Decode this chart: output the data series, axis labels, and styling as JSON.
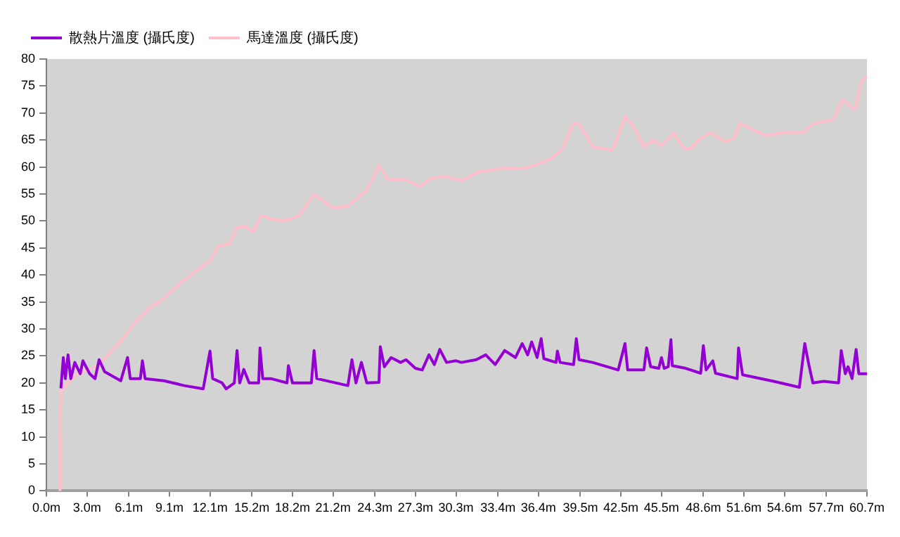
{
  "chart_data": {
    "type": "line",
    "legend": "top left",
    "grid": false,
    "marker": "none",
    "line_style": "solid",
    "xlim": [
      0,
      60.7
    ],
    "ylim": [
      0,
      80
    ],
    "xticks": [
      {
        "value": 0,
        "label": "0.0m"
      },
      {
        "value": 3.0,
        "label": "3.0m"
      },
      {
        "value": 6.1,
        "label": "6.1m"
      },
      {
        "value": 9.1,
        "label": "9.1m"
      },
      {
        "value": 12.1,
        "label": "12.1m"
      },
      {
        "value": 15.2,
        "label": "15.2m"
      },
      {
        "value": 18.2,
        "label": "18.2m"
      },
      {
        "value": 21.2,
        "label": "21.2m"
      },
      {
        "value": 24.3,
        "label": "24.3m"
      },
      {
        "value": 27.3,
        "label": "27.3m"
      },
      {
        "value": 30.3,
        "label": "30.3m"
      },
      {
        "value": 33.4,
        "label": "33.4m"
      },
      {
        "value": 36.4,
        "label": "36.4m"
      },
      {
        "value": 39.5,
        "label": "39.5m"
      },
      {
        "value": 42.5,
        "label": "42.5m"
      },
      {
        "value": 45.5,
        "label": "45.5m"
      },
      {
        "value": 48.6,
        "label": "48.6m"
      },
      {
        "value": 51.6,
        "label": "51.6m"
      },
      {
        "value": 54.6,
        "label": "54.6m"
      },
      {
        "value": 57.7,
        "label": "57.7m"
      },
      {
        "value": 60.7,
        "label": "60.7m"
      }
    ],
    "yticks": [
      0,
      5,
      10,
      15,
      20,
      25,
      30,
      35,
      40,
      45,
      50,
      55,
      60,
      65,
      70,
      75,
      80
    ],
    "series": [
      {
        "name": "散熱片溫度 (攝氏度)",
        "color": "#9400d3",
        "x": [
          1.07,
          1.25,
          1.4,
          1.6,
          1.8,
          2.1,
          2.5,
          2.7,
          3.2,
          3.6,
          3.9,
          4.3,
          5.5,
          6.0,
          6.2,
          6.95,
          7.1,
          7.3,
          8.7,
          10.2,
          11.6,
          12.1,
          12.3,
          13.0,
          13.3,
          13.9,
          14.1,
          14.3,
          14.6,
          15.0,
          15.7,
          15.8,
          16.0,
          16.6,
          17.8,
          17.9,
          18.2,
          19.6,
          19.8,
          20.0,
          22.3,
          22.6,
          22.9,
          23.3,
          23.7,
          24.6,
          24.7,
          25,
          25.5,
          26.2,
          26.6,
          27.3,
          27.8,
          28.3,
          28.7,
          29.1,
          29.6,
          30.3,
          30.7,
          31.8,
          32.5,
          33.2,
          33.9,
          34.7,
          35.2,
          35.6,
          35.9,
          36.3,
          36.6,
          36.8,
          37.7,
          37.8,
          38.0,
          39.0,
          39.2,
          39.4,
          40.4,
          42.3,
          42.8,
          43.0,
          44.2,
          44.4,
          44.7,
          45.3,
          45.5,
          45.7,
          46.0,
          46.2,
          46.3,
          47.3,
          48.4,
          48.6,
          48.8,
          49.3,
          49.5,
          51.1,
          51.2,
          51.5,
          53.8,
          55.7,
          56.1,
          56.4,
          56.7,
          57.5,
          58.6,
          58.8,
          59.1,
          59.3,
          59.6,
          59.9,
          60.1,
          60.7
        ],
        "values": [
          19,
          24.7,
          20.8,
          25.2,
          20.8,
          23.8,
          21.7,
          24.1,
          21.7,
          20.8,
          24.3,
          22.1,
          20.4,
          24.7,
          20.8,
          20.8,
          24.1,
          20.8,
          20.4,
          19.5,
          18.9,
          25.9,
          20.8,
          20,
          18.9,
          20,
          26,
          20,
          22.5,
          20,
          20,
          26.5,
          20.8,
          20.8,
          20,
          23.2,
          20,
          20,
          26,
          20.8,
          19.5,
          24.3,
          20,
          23.8,
          20,
          20.1,
          26.7,
          23,
          24.7,
          23.8,
          24.3,
          22.7,
          22.4,
          25.2,
          23.4,
          26.2,
          23.8,
          24.1,
          23.8,
          24.3,
          25.2,
          23.4,
          26,
          24.7,
          27.3,
          25.2,
          27.6,
          24.7,
          28.2,
          24.5,
          23.8,
          25.9,
          23.8,
          23.4,
          28.2,
          24.3,
          23.8,
          22.4,
          27.3,
          22.4,
          22.4,
          26.5,
          23,
          22.7,
          24.7,
          22.7,
          23,
          28,
          23.2,
          22.7,
          21.8,
          26.9,
          22.4,
          24.1,
          21.8,
          20.8,
          26.5,
          21.5,
          20.3,
          19.2,
          27.3,
          23.4,
          20,
          20.3,
          20,
          26,
          21.7,
          23,
          20.8,
          26.2,
          21.7,
          21.7
        ]
      },
      {
        "name": "馬達溫度 (攝氏度)",
        "color": "#ffc0cb",
        "x": [
          0.9,
          1.0,
          1.07,
          1.6,
          2.3,
          3.7,
          4.5,
          5.5,
          6.6,
          7.7,
          8.7,
          9.8,
          11.2,
          12.1,
          12.7,
          13.5,
          14.1,
          14.6,
          15.3,
          15.9,
          16.6,
          17.6,
          18.7,
          19.8,
          20.3,
          21.2,
          22.3,
          23.7,
          24.6,
          25.3,
          26.6,
          27.6,
          28.5,
          29.6,
          30.7,
          32.1,
          33.9,
          35.2,
          36.1,
          37.2,
          38.1,
          39.0,
          39.4,
          40.4,
          41.9,
          42.8,
          43.3,
          44.2,
          44.9,
          45.5,
          46.4,
          47.1,
          47.6,
          48.2,
          49.1,
          50.2,
          50.9,
          51.3,
          52.0,
          53.3,
          54.5,
          56,
          56.7,
          58.2,
          58.9,
          59.8,
          60.3,
          60.7
        ],
        "values": [
          0,
          0,
          18.6,
          20,
          21.7,
          23,
          25,
          27.8,
          31.3,
          34,
          35.7,
          38.3,
          41,
          42.6,
          45.3,
          45.7,
          48.8,
          49,
          48.1,
          51,
          50.4,
          50,
          51,
          55,
          54.1,
          52.4,
          52.8,
          55.7,
          60.3,
          57.6,
          57.6,
          56.4,
          58,
          58.2,
          57.5,
          59.2,
          59.8,
          59.7,
          60.3,
          61.4,
          63.1,
          68.1,
          68,
          63.8,
          63.1,
          69.3,
          68,
          63.8,
          64.9,
          64,
          66.2,
          63.6,
          63.3,
          64.9,
          66.4,
          64.7,
          65.4,
          68.1,
          67.2,
          65.8,
          66.4,
          66.4,
          68,
          68.8,
          72.5,
          70.6,
          75.8,
          76.9
        ]
      }
    ]
  }
}
